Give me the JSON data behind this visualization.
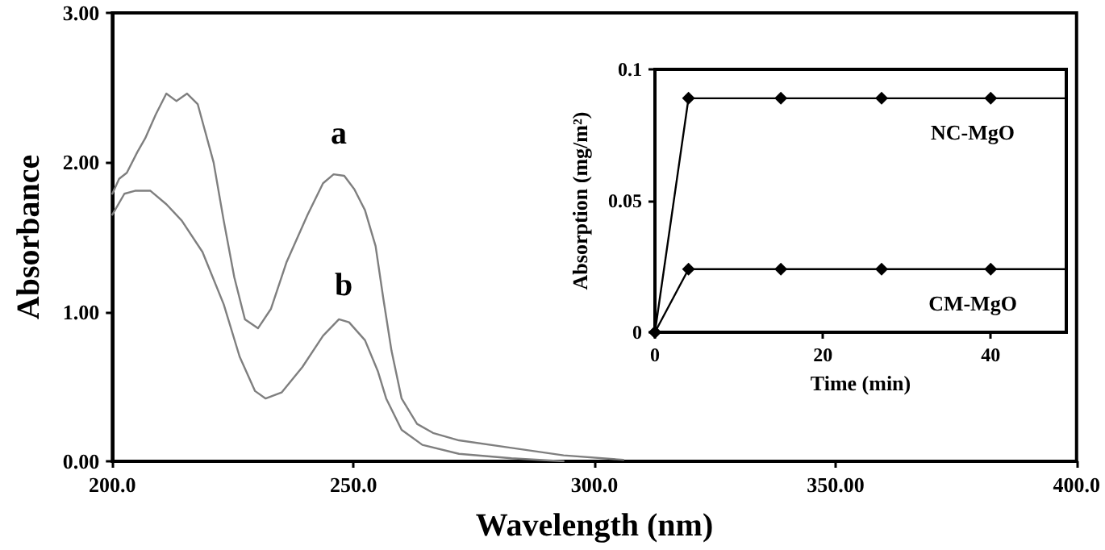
{
  "chart_data": [
    {
      "type": "line",
      "xlabel": "Wavelength (nm)",
      "ylabel": "Absorbance",
      "xlim": [
        200,
        400
      ],
      "xticks": [
        {
          "value": 200,
          "label": "200.0"
        },
        {
          "value": 250,
          "label": "250.0"
        },
        {
          "value": 300,
          "label": "300.0"
        },
        {
          "value": 350,
          "label": "350.00"
        },
        {
          "value": 400,
          "label": "400.0"
        }
      ],
      "ylim": [
        0,
        3
      ],
      "yticks": [
        {
          "value": 0,
          "label": "0.00"
        },
        {
          "value": 1,
          "label": "1.00"
        },
        {
          "value": 2,
          "label": "2.00"
        },
        {
          "value": 3,
          "label": "3.00"
        }
      ],
      "grid": false,
      "marker": "none",
      "line_style": "solid",
      "annotations": [
        "a",
        "b"
      ],
      "series": [
        {
          "color": "#7f7f7f",
          "x": [
            200,
            201.4,
            203,
            205.2,
            206.8,
            209,
            211.2,
            213.3,
            215.5,
            217.7,
            221,
            223.1,
            225.3,
            227.5,
            230.2,
            232.9,
            236.1,
            240.5,
            243.7,
            245.9,
            248.1,
            250.2,
            252.4,
            254.6,
            256.2,
            257.9,
            260,
            263.2,
            266.5,
            271.9,
            282.8,
            293.6,
            306
          ],
          "values": [
            1.79,
            1.89,
            1.93,
            2.07,
            2.16,
            2.32,
            2.46,
            2.41,
            2.46,
            2.39,
            2.0,
            1.61,
            1.23,
            0.95,
            0.89,
            1.02,
            1.33,
            1.65,
            1.86,
            1.92,
            1.91,
            1.82,
            1.68,
            1.44,
            1.09,
            0.74,
            0.42,
            0.25,
            0.19,
            0.14,
            0.09,
            0.04,
            0.01
          ]
        },
        {
          "color": "#7f7f7f",
          "x": [
            200,
            202.5,
            204.7,
            207.9,
            211.2,
            214.4,
            218.7,
            223.1,
            226.4,
            229.6,
            231.8,
            235.1,
            239.4,
            243.7,
            247,
            249.1,
            252.4,
            255.1,
            256.8,
            260,
            264.3,
            271.9,
            282.8,
            293.6
          ],
          "values": [
            1.65,
            1.79,
            1.81,
            1.81,
            1.72,
            1.61,
            1.4,
            1.05,
            0.7,
            0.47,
            0.42,
            0.46,
            0.63,
            0.84,
            0.95,
            0.93,
            0.81,
            0.6,
            0.42,
            0.21,
            0.11,
            0.05,
            0.02,
            0.0
          ]
        }
      ]
    },
    {
      "type": "line",
      "xlabel": "Time (min)",
      "ylabel": "Absorption (mg/m²)",
      "xlim": [
        0,
        49
      ],
      "xticks": [
        0,
        20,
        40
      ],
      "ylim": [
        0,
        0.1
      ],
      "yticks": [
        0,
        0.05,
        0.1
      ],
      "grid": false,
      "marker": "diamond",
      "line_style": "solid",
      "annotations": [
        "NC-MgO",
        "CM-MgO"
      ],
      "series": [
        {
          "color": "#000000",
          "x": [
            0,
            4,
            15,
            27,
            40,
            49
          ],
          "values": [
            0,
            0.089,
            0.089,
            0.089,
            0.089,
            0.089
          ]
        },
        {
          "color": "#000000",
          "x": [
            0,
            4,
            15,
            27,
            40,
            49
          ],
          "values": [
            0,
            0.024,
            0.024,
            0.024,
            0.024,
            0.024
          ]
        }
      ]
    }
  ]
}
